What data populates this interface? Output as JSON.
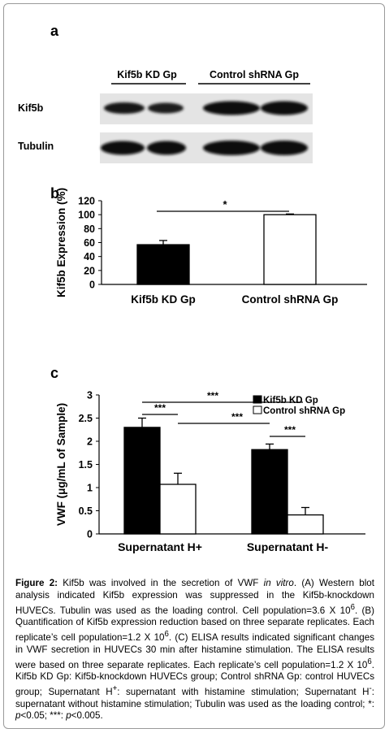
{
  "panel_a": {
    "letter": "a",
    "group_left": "Kif5b KD Gp",
    "group_right": "Control shRNA Gp",
    "row1": "Kif5b",
    "row2": "Tubulin"
  },
  "panel_b": {
    "letter": "b"
  },
  "panel_c": {
    "letter": "c"
  },
  "chart_data": [
    {
      "type": "bar",
      "categories": [
        "Kif5b KD Gp",
        "Control shRNA Gp"
      ],
      "values": [
        57,
        100
      ],
      "errors": [
        6,
        1
      ],
      "colors": [
        "#000000",
        "#ffffff"
      ],
      "ylabel": "Kif5b Expression (%)",
      "ylim": [
        0,
        120
      ],
      "yticks": [
        "0",
        "20",
        "40",
        "60",
        "80",
        "100",
        "120"
      ],
      "significance": [
        {
          "between": [
            0,
            1
          ],
          "label": "*"
        }
      ]
    },
    {
      "type": "bar",
      "categories": [
        "Supernatant H+",
        "Supernatant H-"
      ],
      "series": [
        {
          "name": "Kif5b KD Gp",
          "values": [
            2.3,
            1.82
          ],
          "errors": [
            0.2,
            0.12
          ],
          "color": "#000000"
        },
        {
          "name": "Control shRNA Gp",
          "values": [
            1.07,
            0.41
          ],
          "errors": [
            0.24,
            0.16
          ],
          "color": "#ffffff"
        }
      ],
      "ylabel": "VWF (μg/mL of Sample)",
      "ylim": [
        0,
        3
      ],
      "yticks": [
        "0",
        "0.5",
        "1",
        "1.5",
        "2",
        "2.5",
        "3"
      ],
      "legend": "top-right",
      "significance": [
        {
          "label": "***"
        },
        {
          "label": "***"
        },
        {
          "label": "***"
        },
        {
          "label": "***"
        }
      ]
    }
  ],
  "caption": {
    "label": "Figure 2:",
    "t1": " Kif5b was involved in the secretion of VWF ",
    "t1_italic": "in vitro",
    "t2": ". (A) Western blot analysis indicated Kif5b expression was suppressed in the Kif5b-knockdown HUVECs. Tubulin was used as the loading control. Cell population=3.6 X 10",
    "sup1": "6",
    "t3": ". (B) Quantification of Kif5b expression reduction based on three separate replicates. Each replicate’s cell population=1.2 X 10",
    "sup2": "6",
    "t4": ". (C) ELISA results indicated significant changes in VWF secretion in HUVECs 30 min after histamine stimulation. The ELISA results were based on three separate replicates. Each replicate’s cell population=1.2 X 10",
    "sup3": "6",
    "t5": ". Kif5b KD Gp: Kif5b-knockdown HUVECs group; Control shRNA Gp: control HUVECs group; Supernatant H",
    "sup4": "+",
    "t6": ": supernatant with histamine stimulation; Supernatant H",
    "sup5": "-",
    "t7": ": supernatant without histamine stimulation; Tubulin was used as the loading control; *: ",
    "p1": "p",
    "t8": "<0.05; ***: ",
    "p2": "p",
    "t9": "<0.005."
  }
}
